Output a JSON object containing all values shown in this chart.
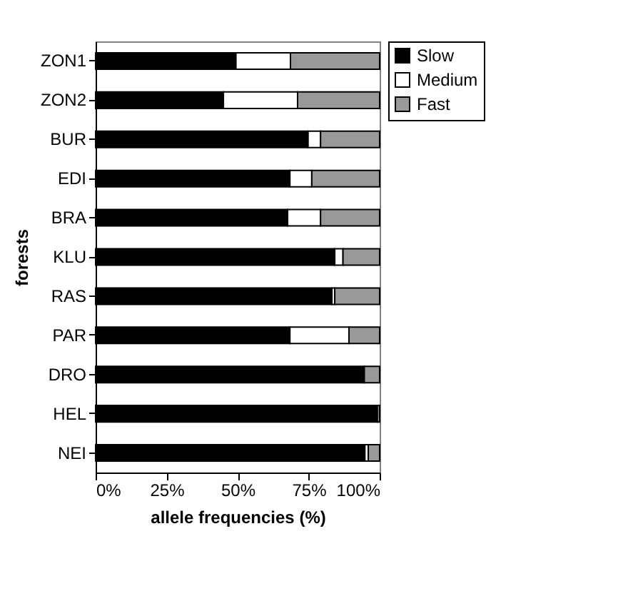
{
  "chart_data": {
    "type": "bar",
    "orientation": "horizontal",
    "stacked": true,
    "xlabel": "allele frequencies (%)",
    "ylabel": "forests",
    "categories": [
      "ZON1",
      "ZON2",
      "BUR",
      "EDI",
      "BRA",
      "KLU",
      "RAS",
      "PAR",
      "DRO",
      "HEL",
      "NEI"
    ],
    "series": [
      {
        "name": "Slow",
        "color": "#000000",
        "values": [
          49.4,
          45,
          74.8,
          68.4,
          67.6,
          84.2,
          83.2,
          68.4,
          94.6,
          99.2,
          94.8
        ]
      },
      {
        "name": "Medium",
        "color": "#ffffff",
        "values": [
          19.2,
          26.1,
          4.4,
          7.7,
          11.6,
          2.9,
          1,
          20.8,
          0,
          0,
          1.2
        ]
      },
      {
        "name": "Fast",
        "color": "#999999",
        "values": [
          31.4,
          28.9,
          20.8,
          23.9,
          20.8,
          12.9,
          15.8,
          10.8,
          5.4,
          0.8,
          4
        ]
      }
    ],
    "xlim": [
      0,
      100
    ],
    "xticks": [
      {
        "value": 0,
        "label": "0%"
      },
      {
        "value": 25,
        "label": "25%"
      },
      {
        "value": 50,
        "label": "50%"
      },
      {
        "value": 75,
        "label": "75%"
      },
      {
        "value": 100,
        "label": "100%"
      }
    ],
    "grid": false,
    "legend": "right"
  }
}
